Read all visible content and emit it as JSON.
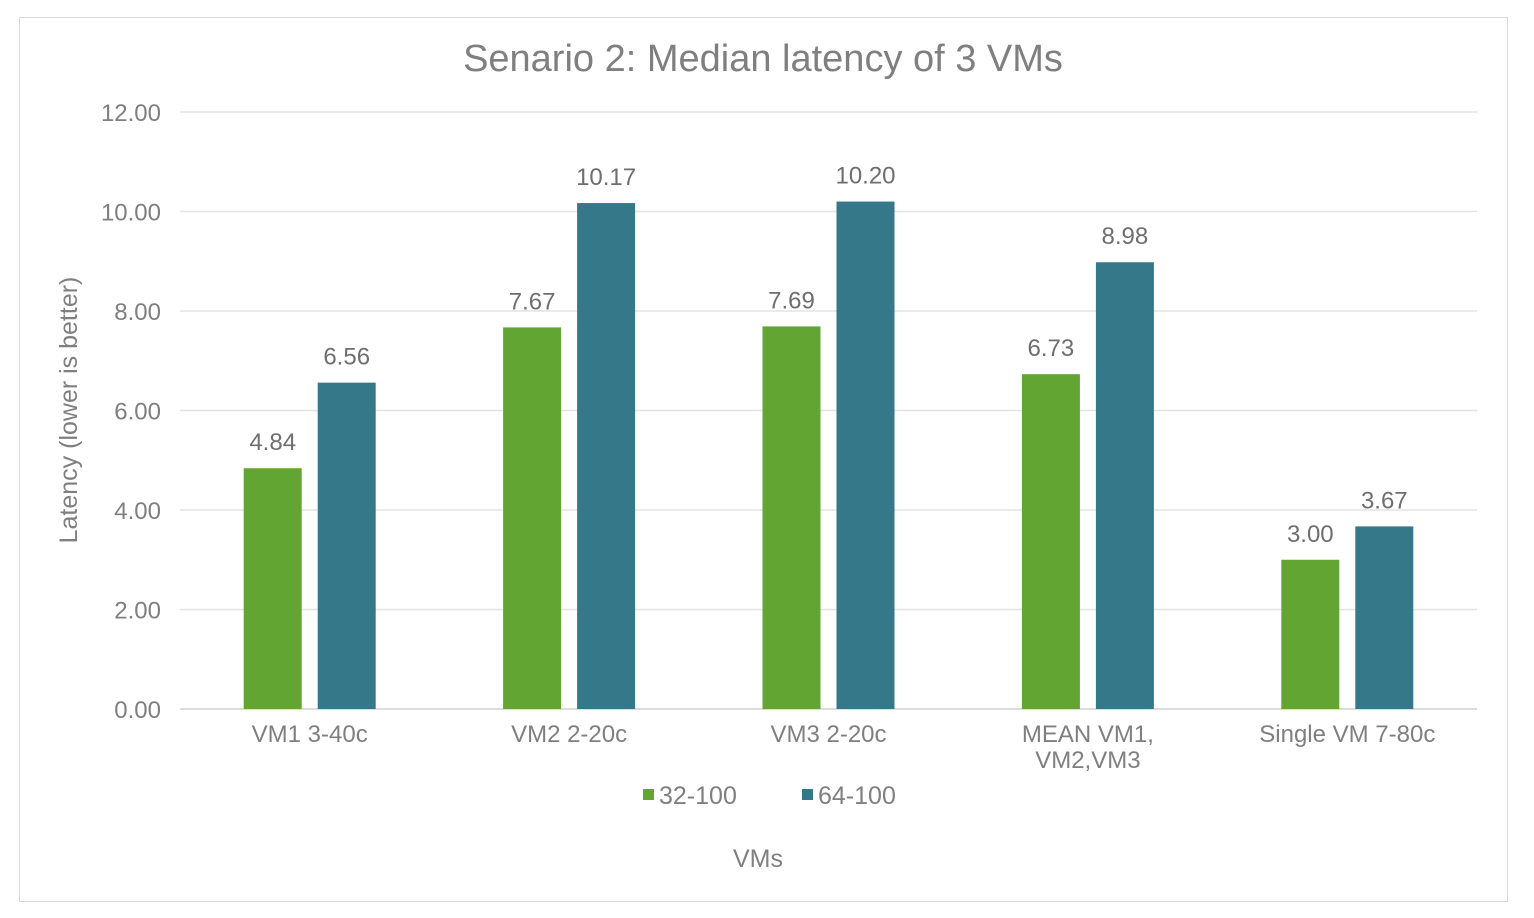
{
  "chart_data": {
    "type": "bar",
    "title": "Senario 2: Median latency of 3 VMs",
    "xlabel": "VMs",
    "ylabel": "Latency (lower is better)",
    "ylim": [
      0,
      12
    ],
    "y_ticks": [
      "0.00",
      "2.00",
      "4.00",
      "6.00",
      "8.00",
      "10.00",
      "12.00"
    ],
    "grid": true,
    "legend_position": "bottom",
    "categories": [
      [
        "VM1 3-40c"
      ],
      [
        "VM2 2-20c"
      ],
      [
        "VM3 2-20c"
      ],
      [
        "MEAN VM1,",
        "VM2,VM3"
      ],
      [
        "Single VM 7-80c"
      ]
    ],
    "series": [
      {
        "name": "32-100",
        "color": "#63a532",
        "values": [
          4.84,
          7.67,
          7.69,
          6.73,
          3.0
        ],
        "labels": [
          "4.84",
          "7.67",
          "7.69",
          "6.73",
          "3.00"
        ]
      },
      {
        "name": "64-100",
        "color": "#357889",
        "values": [
          6.56,
          10.17,
          10.2,
          8.98,
          3.67
        ],
        "labels": [
          "6.56",
          "10.17",
          "10.20",
          "8.98",
          "3.67"
        ]
      }
    ]
  }
}
